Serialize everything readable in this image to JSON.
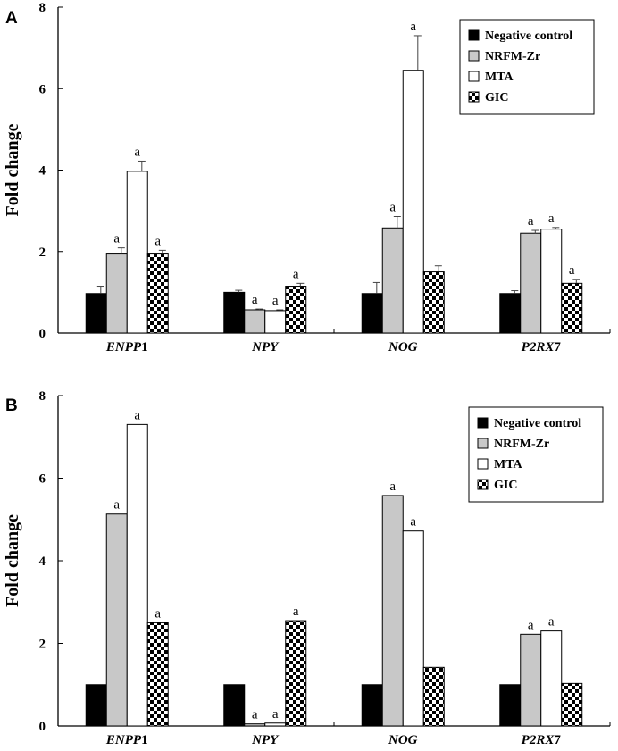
{
  "colors": {
    "negative_control": "#000000",
    "nrfm_zr": "#c8c8c8",
    "mta": "#ffffff",
    "gic": "checkerboard"
  },
  "chart_data": [
    {
      "type": "bar",
      "panel_label": "A",
      "title": "",
      "xlabel": "",
      "ylabel": "Fold change",
      "ylim": [
        0,
        8
      ],
      "yticks": [
        "0",
        "2",
        "4",
        "6",
        "8"
      ],
      "categories": [
        {
          "italic": "ENPP",
          "suffix": "1"
        },
        {
          "italic": "NPY",
          "suffix": ""
        },
        {
          "italic": "NOG",
          "suffix": ""
        },
        {
          "italic": "P2RX",
          "suffix": "7"
        }
      ],
      "legend_position": "top-right",
      "series": [
        {
          "name": "Negative control",
          "key": "negative_control",
          "values": [
            0.97,
            1.0,
            0.97,
            0.97
          ],
          "errors": [
            0.18,
            0.05,
            0.27,
            0.07
          ],
          "labels": [
            "",
            "",
            "",
            ""
          ]
        },
        {
          "name": "NRFM-Zr",
          "key": "nrfm_zr",
          "values": [
            1.96,
            0.57,
            2.58,
            2.45
          ],
          "errors": [
            0.13,
            0.02,
            0.28,
            0.07
          ],
          "labels": [
            "a",
            "a",
            "a",
            "a"
          ]
        },
        {
          "name": "MTA",
          "key": "mta",
          "values": [
            3.97,
            0.55,
            6.45,
            2.55
          ],
          "errors": [
            0.25,
            0.02,
            0.85,
            0.04
          ],
          "labels": [
            "a",
            "a",
            "a",
            "a"
          ]
        },
        {
          "name": "GIC",
          "key": "gic",
          "values": [
            1.96,
            1.15,
            1.5,
            1.22
          ],
          "errors": [
            0.07,
            0.07,
            0.15,
            0.1
          ],
          "labels": [
            "a",
            "a",
            "",
            "a"
          ]
        }
      ]
    },
    {
      "type": "bar",
      "panel_label": "B",
      "title": "",
      "xlabel": "",
      "ylabel": "Fold change",
      "ylim": [
        0,
        8
      ],
      "yticks": [
        "0",
        "2",
        "4",
        "6",
        "8"
      ],
      "categories": [
        {
          "italic": "ENPP",
          "suffix": "1"
        },
        {
          "italic": "NPY",
          "suffix": ""
        },
        {
          "italic": "NOG",
          "suffix": ""
        },
        {
          "italic": "P2RX",
          "suffix": "7"
        }
      ],
      "legend_position": "top-right",
      "series": [
        {
          "name": "Negative control",
          "key": "negative_control",
          "values": [
            1.0,
            1.0,
            1.0,
            1.0
          ],
          "errors": [
            0,
            0,
            0,
            0
          ],
          "labels": [
            "",
            "",
            "",
            ""
          ]
        },
        {
          "name": "NRFM-Zr",
          "key": "nrfm_zr",
          "values": [
            5.13,
            0.05,
            5.58,
            2.22
          ],
          "errors": [
            0,
            0,
            0,
            0
          ],
          "labels": [
            "a",
            "a",
            "a",
            "a"
          ]
        },
        {
          "name": "MTA",
          "key": "mta",
          "values": [
            7.3,
            0.07,
            4.72,
            2.3
          ],
          "errors": [
            0,
            0,
            0,
            0
          ],
          "labels": [
            "a",
            "a",
            "a",
            "a"
          ]
        },
        {
          "name": "GIC",
          "key": "gic",
          "values": [
            2.5,
            2.55,
            1.42,
            1.03
          ],
          "errors": [
            0,
            0,
            0,
            0
          ],
          "labels": [
            "a",
            "a",
            "",
            ""
          ]
        }
      ]
    }
  ]
}
